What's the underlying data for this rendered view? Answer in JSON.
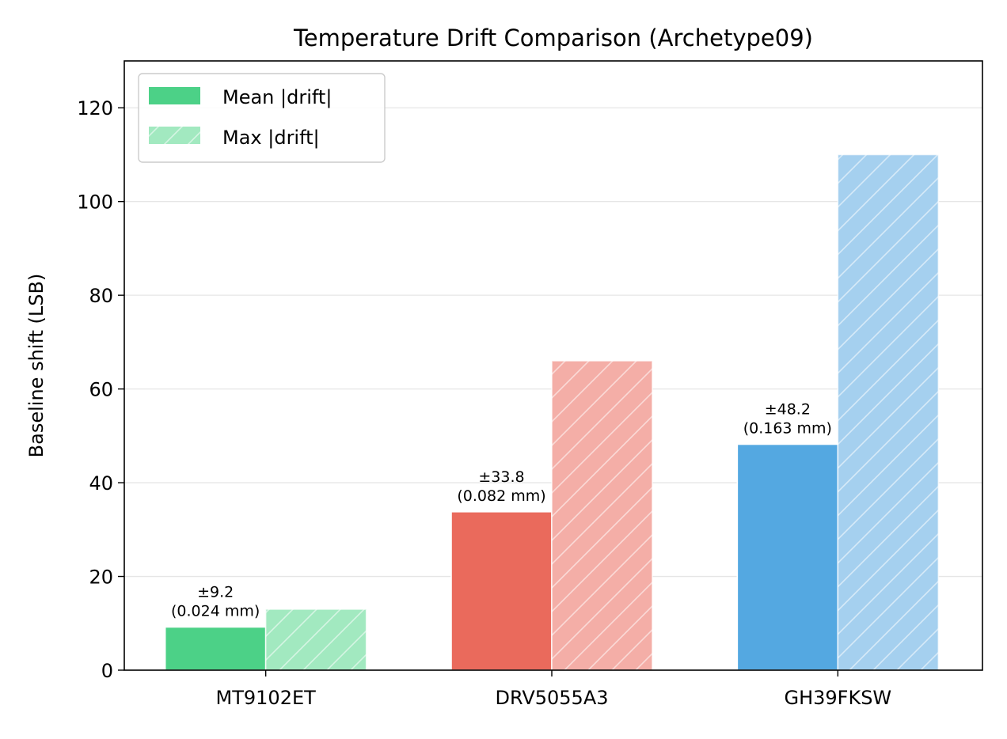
{
  "chart_data": {
    "type": "bar",
    "title": "Temperature Drift Comparison (Archetype09)",
    "xlabel": "",
    "ylabel": "Baseline shift (LSB)",
    "ylim": [
      0,
      130
    ],
    "yticks": [
      0,
      20,
      40,
      60,
      80,
      100,
      120
    ],
    "grid": "horizontal",
    "legend_position": "top-left",
    "categories": [
      "MT9102ET",
      "DRV5055A3",
      "GH39FKSW"
    ],
    "colors": [
      "#4cd187",
      "#ea6a5c",
      "#54a8e1"
    ],
    "light_colors": [
      "#a2e9c0",
      "#f4aea7",
      "#a5d0ef"
    ],
    "series": [
      {
        "name": "Mean |drift|",
        "values": [
          9.2,
          33.8,
          48.2
        ],
        "style": "solid"
      },
      {
        "name": "Max |drift|",
        "values": [
          13,
          66,
          110
        ],
        "style": "hatched"
      }
    ],
    "annotations": [
      {
        "line1": "±9.2",
        "line2": "(0.024 mm)"
      },
      {
        "line1": "±33.8",
        "line2": "(0.082 mm)"
      },
      {
        "line1": "±48.2",
        "line2": "(0.163 mm)"
      }
    ]
  }
}
